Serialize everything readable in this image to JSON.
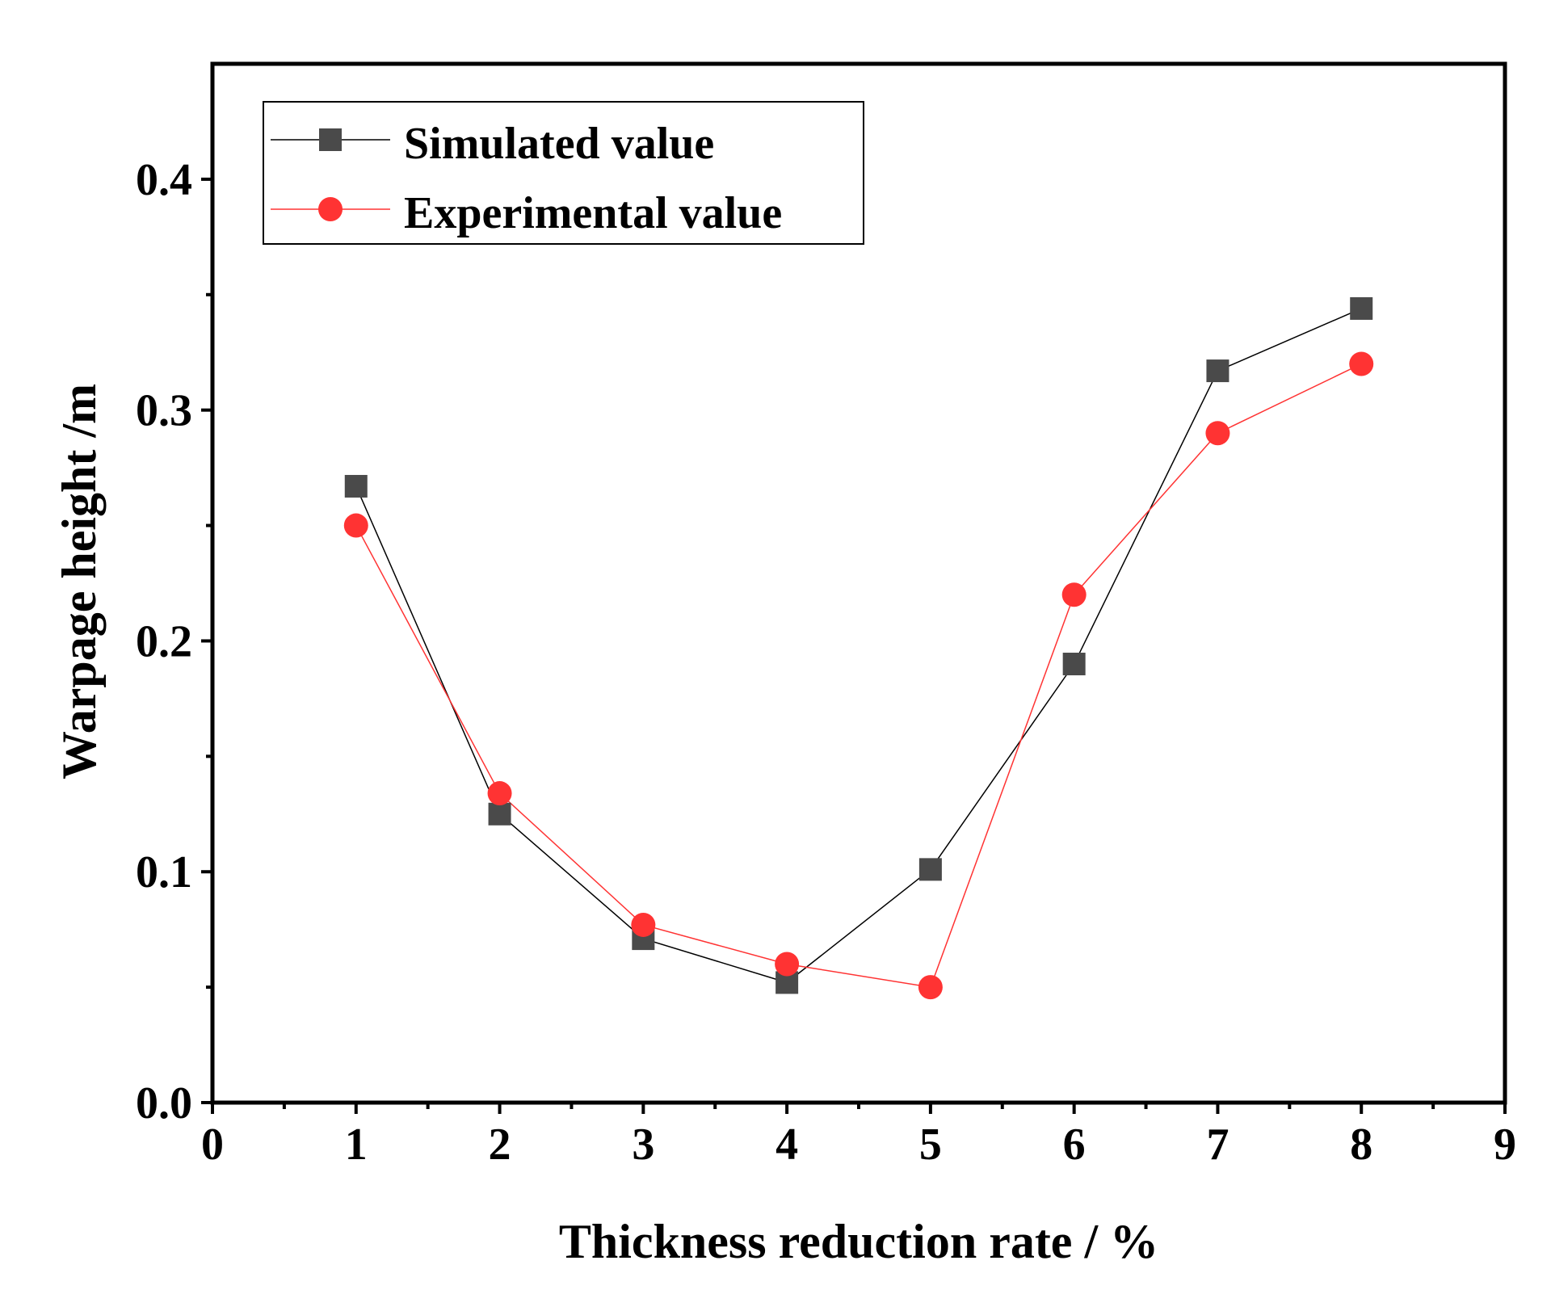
{
  "chart_data": {
    "type": "line",
    "title": "",
    "xlabel": "Thickness reduction rate / %",
    "ylabel": "Warpage height /m",
    "xlim": [
      0,
      9
    ],
    "ylim": [
      0,
      0.45
    ],
    "x_ticks": [
      0,
      1,
      2,
      3,
      4,
      5,
      6,
      7,
      8,
      9
    ],
    "x_tick_labels": [
      "0",
      "1",
      "2",
      "3",
      "4",
      "5",
      "6",
      "7",
      "8",
      "9"
    ],
    "y_ticks": [
      0,
      0.1,
      0.2,
      0.3,
      0.4
    ],
    "y_tick_labels": [
      "0.0",
      "0.1",
      "0.2",
      "0.3",
      "0.4"
    ],
    "grid": false,
    "legend_position": "top-left",
    "x": [
      1,
      2,
      3,
      4,
      5,
      6,
      7,
      8
    ],
    "series": [
      {
        "name": "Simulated value",
        "color": "#4a4a4a",
        "line_color": "#000000",
        "marker": "square",
        "values": [
          0.267,
          0.125,
          0.071,
          0.052,
          0.101,
          0.19,
          0.317,
          0.344
        ]
      },
      {
        "name": "Experimental value",
        "color": "#ff3333",
        "line_color": "#ff3333",
        "marker": "circle",
        "values": [
          0.25,
          0.134,
          0.077,
          0.06,
          0.05,
          0.22,
          0.29,
          0.32
        ]
      }
    ]
  }
}
